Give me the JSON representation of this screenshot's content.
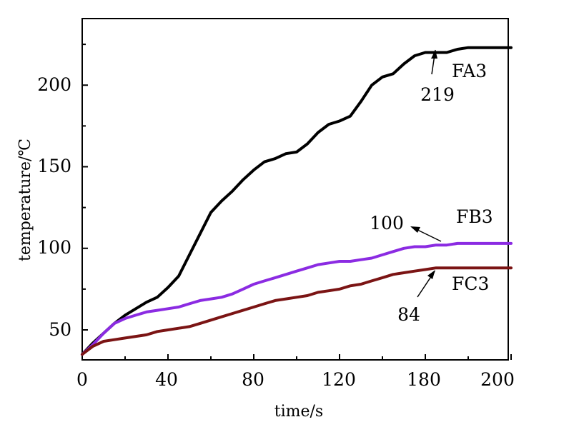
{
  "chart_data": {
    "type": "line",
    "xlabel": "time/s",
    "ylabel": "temperature/℃",
    "xlim": [
      0,
      200
    ],
    "ylim": [
      30,
      235
    ],
    "xticks": [
      0,
      40,
      80,
      120,
      180,
      200
    ],
    "xtick_labels": [
      "0",
      "40",
      "80",
      "120",
      "180",
      "200"
    ],
    "yticks": [
      50,
      100,
      150,
      200
    ],
    "ytick_labels": [
      "50",
      "100",
      "150",
      "200"
    ],
    "grid": false,
    "legend": "none",
    "series": [
      {
        "name": "FA3",
        "color": "#000000",
        "x": [
          0,
          5,
          10,
          15,
          20,
          25,
          30,
          35,
          40,
          45,
          50,
          55,
          60,
          65,
          70,
          75,
          80,
          85,
          90,
          95,
          100,
          105,
          110,
          115,
          120,
          125,
          130,
          135,
          140,
          145,
          150,
          155,
          160,
          165,
          170,
          175,
          180,
          185,
          190,
          195,
          200
        ],
        "y": [
          35,
          42,
          48,
          54,
          59,
          63,
          67,
          70,
          76,
          83,
          96,
          109,
          122,
          129,
          135,
          142,
          148,
          153,
          155,
          158,
          159,
          164,
          171,
          176,
          178,
          181,
          190,
          200,
          205,
          207,
          213,
          218,
          220,
          220,
          220,
          222,
          223,
          223,
          223,
          223,
          223
        ],
        "end_label": "FA3"
      },
      {
        "name": "FB3",
        "color": "#8b2be2",
        "x": [
          0,
          5,
          10,
          15,
          20,
          25,
          30,
          35,
          40,
          45,
          50,
          55,
          60,
          65,
          70,
          75,
          80,
          85,
          90,
          95,
          100,
          105,
          110,
          115,
          120,
          125,
          130,
          135,
          140,
          145,
          150,
          155,
          160,
          165,
          170,
          175,
          180,
          185,
          190,
          195,
          200
        ],
        "y": [
          35,
          41,
          48,
          54,
          57,
          59,
          61,
          62,
          63,
          64,
          66,
          68,
          69,
          70,
          72,
          75,
          78,
          80,
          82,
          84,
          86,
          88,
          90,
          91,
          92,
          92,
          93,
          94,
          96,
          98,
          100,
          101,
          101,
          102,
          102,
          103,
          103,
          103,
          103,
          103,
          103
        ],
        "end_label": "FB3"
      },
      {
        "name": "FC3",
        "color": "#7b1414",
        "x": [
          0,
          5,
          10,
          15,
          20,
          25,
          30,
          35,
          40,
          45,
          50,
          55,
          60,
          65,
          70,
          75,
          80,
          85,
          90,
          95,
          100,
          105,
          110,
          115,
          120,
          125,
          130,
          135,
          140,
          145,
          150,
          155,
          160,
          165,
          170,
          175,
          180,
          185,
          190,
          195,
          200
        ],
        "y": [
          35,
          40,
          43,
          44,
          45,
          46,
          47,
          49,
          50,
          51,
          52,
          54,
          56,
          58,
          60,
          62,
          64,
          66,
          68,
          69,
          70,
          71,
          73,
          74,
          75,
          77,
          78,
          80,
          82,
          84,
          85,
          86,
          87,
          88,
          88,
          88,
          88,
          88,
          88,
          88,
          88
        ],
        "end_label": "FC3"
      }
    ],
    "annotations": [
      {
        "text": "219",
        "series": "FA3"
      },
      {
        "text": "100",
        "series": "FB3"
      },
      {
        "text": "84",
        "series": "FC3"
      }
    ]
  }
}
